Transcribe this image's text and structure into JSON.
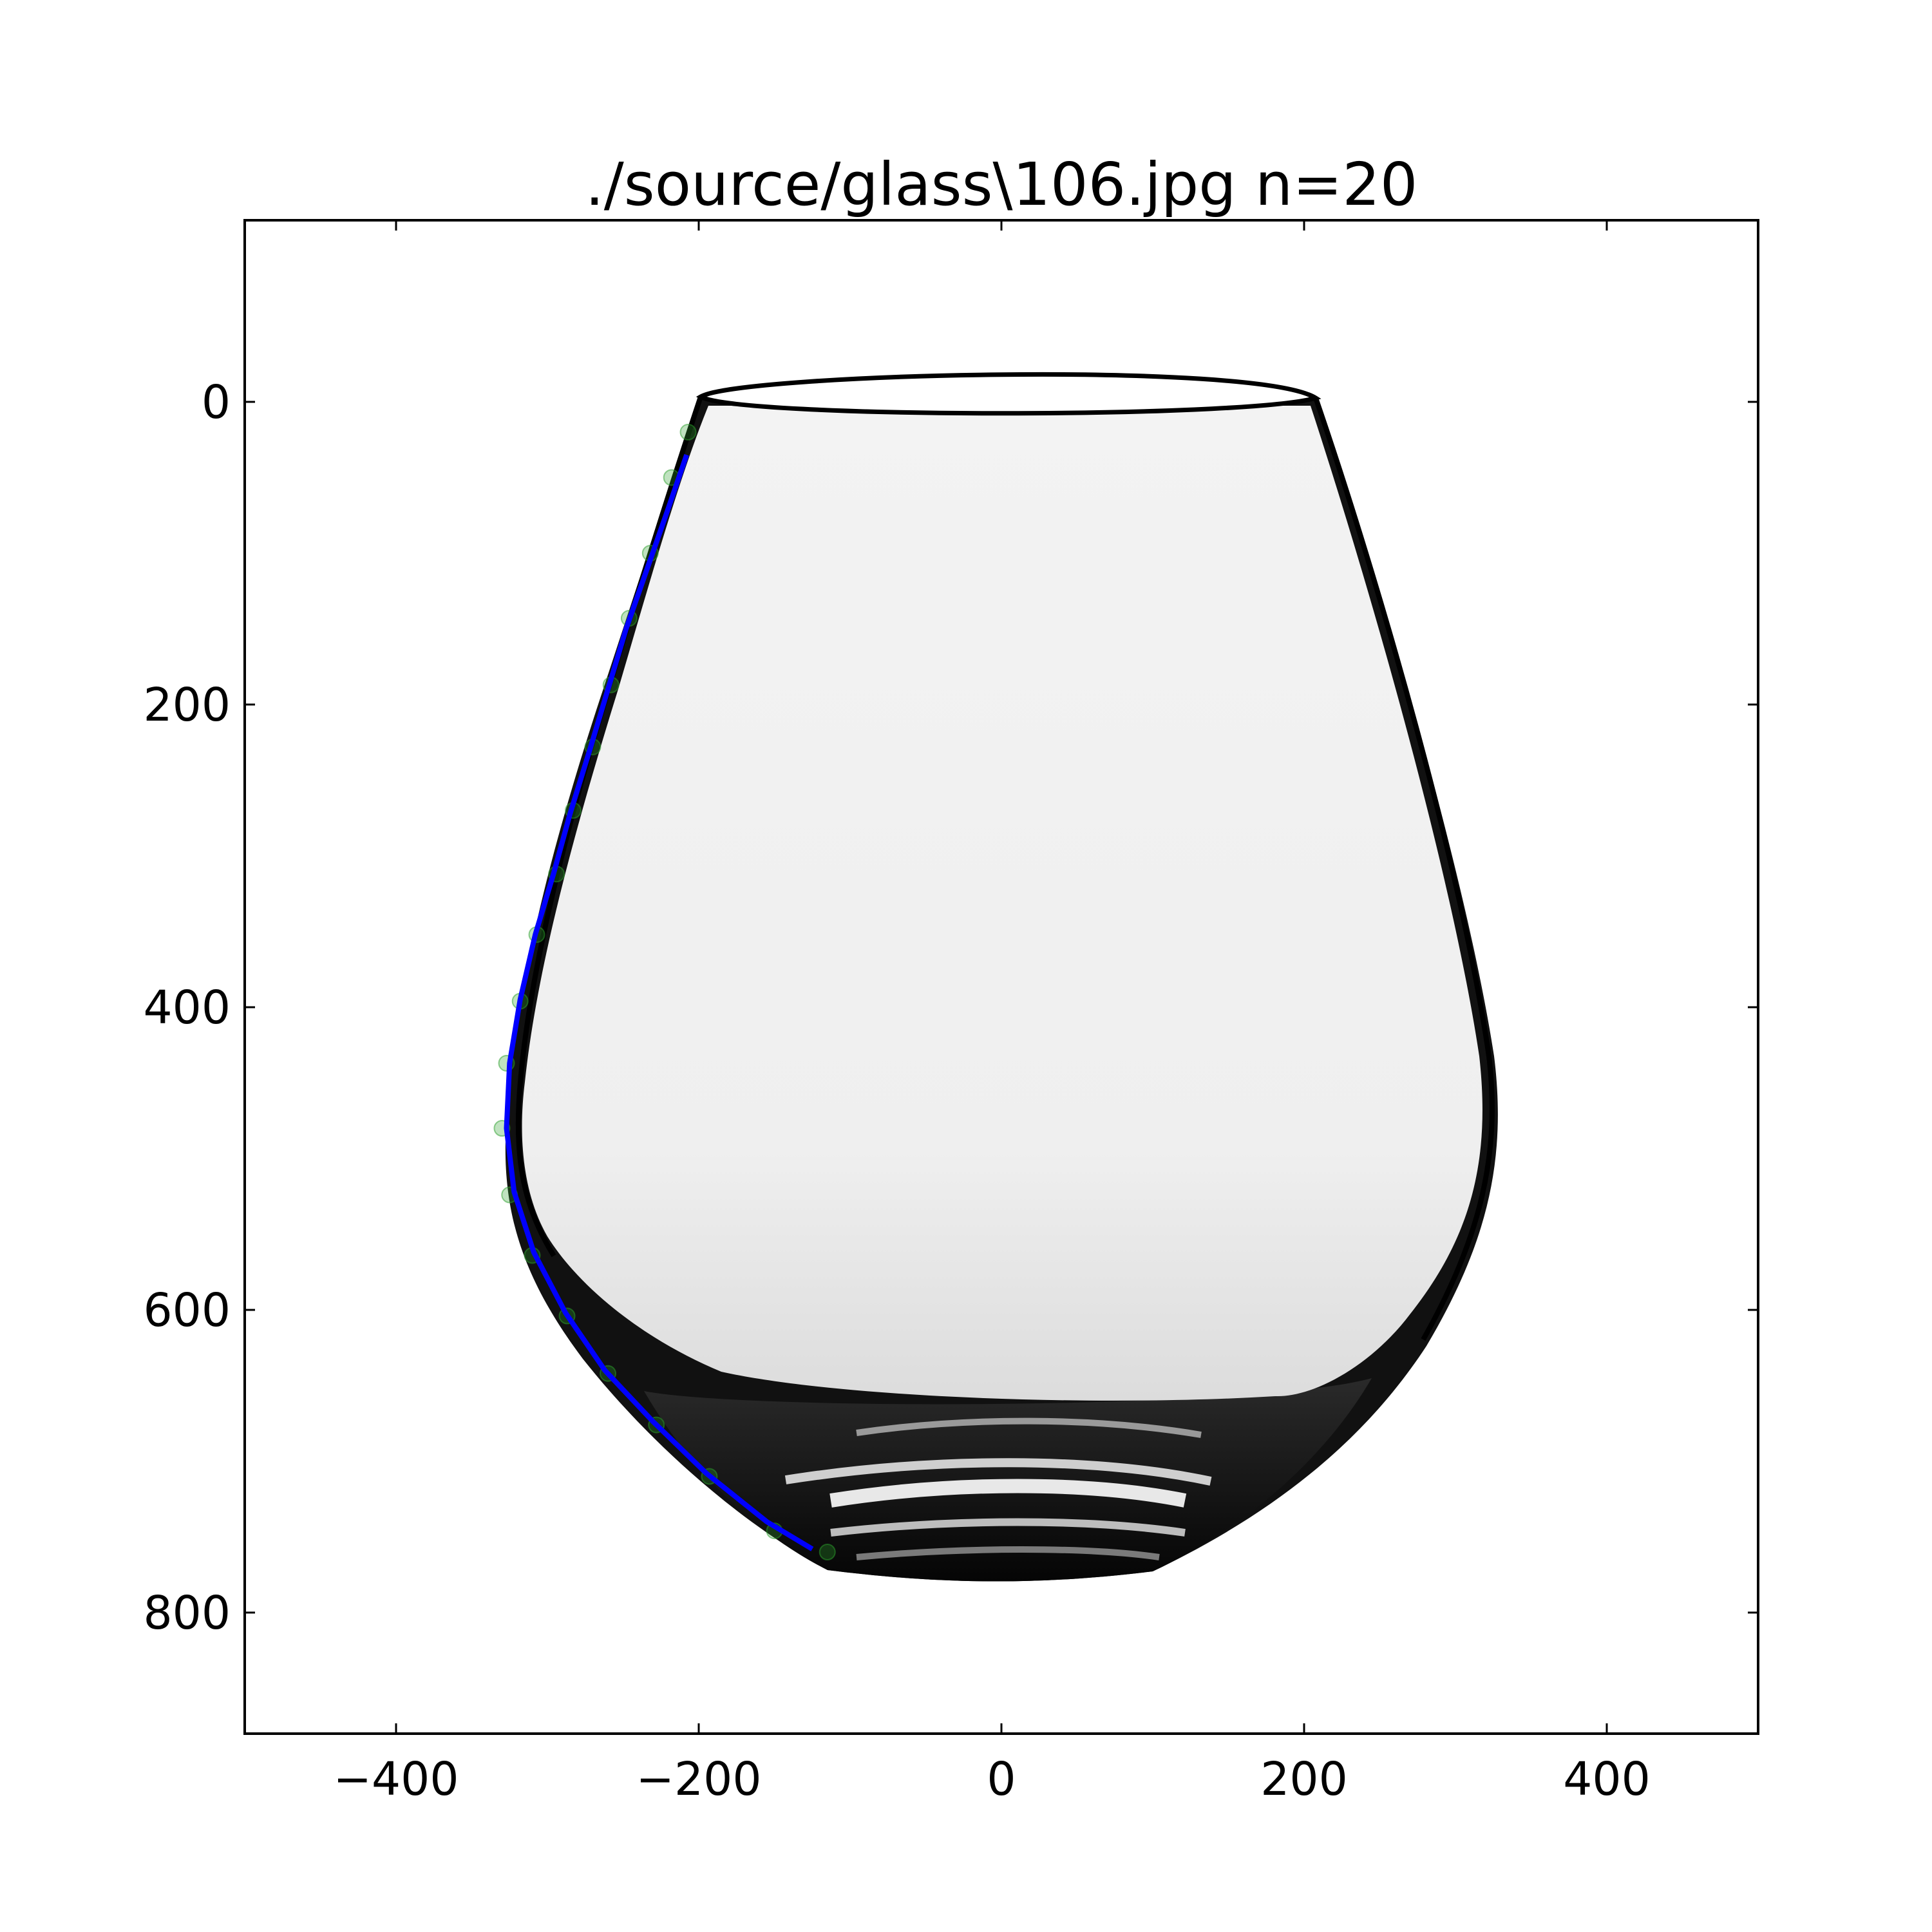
{
  "chart_data": {
    "type": "scatter",
    "title": "./source/glass\\106.jpg n=20",
    "xlabel": "",
    "ylabel": "",
    "xlim": [
      -500,
      500
    ],
    "ylim": [
      880,
      -120
    ],
    "y_inverted": true,
    "grid": false,
    "x_ticks": [
      -400,
      -200,
      0,
      200,
      400
    ],
    "y_ticks": [
      0,
      200,
      400,
      600,
      800
    ],
    "x_tick_labels": [
      "−400",
      "−200",
      "0",
      "200",
      "400"
    ],
    "y_tick_labels": [
      "0",
      "200",
      "400",
      "600",
      "800"
    ],
    "background_image": "photo of a stemless wine glass",
    "series": [
      {
        "kind": "points",
        "color": "#2ca02c",
        "x": [
          -207,
          -218,
          -232,
          -246,
          -258,
          -270,
          -283,
          -294,
          -307,
          -318,
          -327,
          -330,
          -325,
          -310,
          -287,
          -260,
          -228,
          -193,
          -150,
          -115
        ],
        "y": [
          20,
          50,
          100,
          143,
          187,
          228,
          270,
          312,
          352,
          396,
          437,
          480,
          524,
          564,
          604,
          642,
          676,
          710,
          746,
          760
        ]
      },
      {
        "kind": "line",
        "color": "#0000ff",
        "x": [
          -208,
          -220,
          -234,
          -248,
          -260,
          -272,
          -285,
          -296,
          -308,
          -318,
          -325,
          -327,
          -322,
          -309,
          -288,
          -262,
          -230,
          -195,
          -155,
          -125
        ],
        "y": [
          35,
          70,
          110,
          150,
          190,
          230,
          272,
          312,
          352,
          395,
          437,
          480,
          522,
          562,
          602,
          640,
          674,
          708,
          740,
          758
        ]
      }
    ]
  }
}
